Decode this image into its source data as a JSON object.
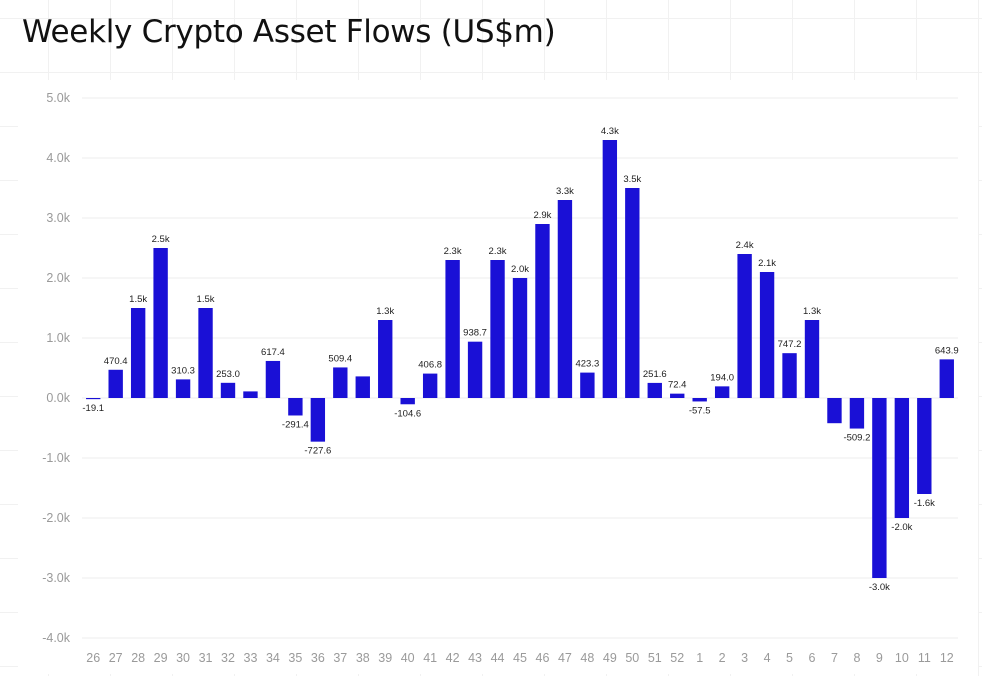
{
  "chart_data": {
    "type": "bar",
    "title": "Weekly Crypto Asset Flows (US$m)",
    "xlabel": "",
    "ylabel": "",
    "ylim": [
      -4000,
      5000
    ],
    "yticks": [
      5000,
      4000,
      3000,
      2000,
      1000,
      0,
      -1000,
      -2000,
      -3000,
      -4000
    ],
    "ytick_labels": [
      "5.0k",
      "4.0k",
      "3.0k",
      "2.0k",
      "1.0k",
      "0.0k",
      "-1.0k",
      "-2.0k",
      "-3.0k",
      "-4.0k"
    ],
    "grid": true,
    "bar_color": "#1a10d6",
    "categories": [
      "26",
      "27",
      "28",
      "29",
      "30",
      "31",
      "32",
      "33",
      "34",
      "35",
      "36",
      "37",
      "38",
      "39",
      "40",
      "41",
      "42",
      "43",
      "44",
      "45",
      "46",
      "47",
      "48",
      "49",
      "50",
      "51",
      "52",
      "1",
      "2",
      "3",
      "4",
      "5",
      "6",
      "7",
      "8",
      "9",
      "10",
      "11",
      "12"
    ],
    "values": [
      -19.1,
      470.4,
      1500,
      2500,
      310.3,
      1500,
      253.0,
      110,
      617.4,
      -291.4,
      -727.6,
      509.4,
      360,
      1300,
      -104.6,
      406.8,
      2300,
      938.7,
      2300,
      2000,
      2900,
      3300,
      423.3,
      4300,
      3500,
      251.6,
      72.4,
      -57.5,
      194.0,
      2400,
      2100,
      747.2,
      1300,
      -420,
      -509.2,
      -3000,
      -2000,
      -1600,
      643.9
    ],
    "labels": [
      "-19.1",
      "470.4",
      "1.5k",
      "2.5k",
      "310.3",
      "1.5k",
      "253.0",
      "",
      "617.4",
      "-291.4",
      "-727.6",
      "509.4",
      "",
      "1.3k",
      "-104.6",
      "406.8",
      "2.3k",
      "938.7",
      "2.3k",
      "2.0k",
      "2.9k",
      "3.3k",
      "423.3",
      "4.3k",
      "3.5k",
      "251.6",
      "72.4",
      "-57.5",
      "194.0",
      "2.4k",
      "2.1k",
      "747.2",
      "1.3k",
      "",
      "-509.2",
      "-3.0k",
      "-2.0k",
      "-1.6k",
      "643.9"
    ]
  }
}
